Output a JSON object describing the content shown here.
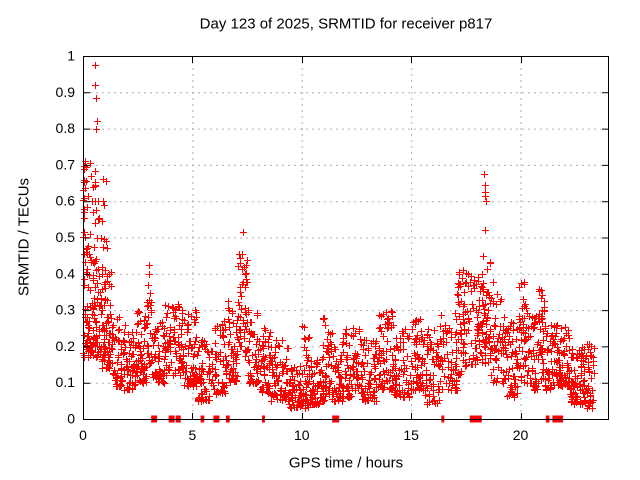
{
  "window": {
    "title": "Day 123 of 2025, SRMTID for receiver p817"
  },
  "chart_data": {
    "type": "scatter",
    "title": "Day 123 of 2025, SRMTID for receiver p817",
    "xlabel": "GPS time / hours",
    "ylabel": "SRMTID / TECUs",
    "xlim": [
      0,
      24
    ],
    "ylim": [
      0,
      1
    ],
    "xticks": [
      0,
      5,
      10,
      15,
      20
    ],
    "yticks": [
      0,
      0.1,
      0.2,
      0.3,
      0.4,
      0.5,
      0.6,
      0.7,
      0.8,
      0.9,
      1
    ],
    "grid": true,
    "grid_style": "dashed-gray",
    "grid_color": "#b0b0b0",
    "legend": "none",
    "marker_color": "#ff0000",
    "border_color": "#000000",
    "series": [
      {
        "name": "srmtid",
        "marker": "plus",
        "comment": "dense scatter envelope read off the plot; bands are [x_start_hr, x_end_hr, y_min, y_max, point_count, bias_exponent]",
        "bands": [
          [
            0.0,
            0.35,
            0.17,
            0.48,
            50,
            1.5
          ],
          [
            0.0,
            0.15,
            0.5,
            0.71,
            10,
            1.0
          ],
          [
            0.35,
            0.8,
            0.17,
            0.45,
            60,
            1.5
          ],
          [
            0.45,
            0.75,
            0.45,
            0.7,
            9,
            1.0
          ],
          [
            0.8,
            1.3,
            0.14,
            0.42,
            70,
            1.5
          ],
          [
            1.3,
            1.8,
            0.09,
            0.28,
            55,
            1.5
          ],
          [
            1.8,
            2.4,
            0.08,
            0.26,
            55,
            1.5
          ],
          [
            2.4,
            2.9,
            0.1,
            0.3,
            55,
            1.5
          ],
          [
            2.9,
            3.12,
            0.15,
            0.42,
            25,
            1.1
          ],
          [
            3.12,
            3.7,
            0.1,
            0.28,
            50,
            1.5
          ],
          [
            3.7,
            4.6,
            0.12,
            0.32,
            85,
            1.5
          ],
          [
            4.6,
            5.2,
            0.09,
            0.3,
            60,
            1.5
          ],
          [
            5.2,
            6.0,
            0.05,
            0.22,
            65,
            1.5
          ],
          [
            6.0,
            6.6,
            0.07,
            0.27,
            55,
            1.5
          ],
          [
            6.6,
            7.05,
            0.1,
            0.33,
            50,
            1.4
          ],
          [
            7.05,
            7.5,
            0.17,
            0.46,
            45,
            1.2
          ],
          [
            7.5,
            8.0,
            0.1,
            0.3,
            50,
            1.5
          ],
          [
            8.0,
            8.6,
            0.07,
            0.25,
            55,
            1.5
          ],
          [
            8.6,
            9.4,
            0.05,
            0.22,
            65,
            1.5
          ],
          [
            9.4,
            9.95,
            0.03,
            0.15,
            50,
            1.5
          ],
          [
            9.95,
            10.35,
            0.03,
            0.26,
            45,
            1.6
          ],
          [
            10.35,
            10.9,
            0.04,
            0.18,
            50,
            1.5
          ],
          [
            10.9,
            11.25,
            0.05,
            0.28,
            40,
            1.4
          ],
          [
            11.25,
            11.95,
            0.05,
            0.24,
            60,
            1.5
          ],
          [
            11.95,
            12.7,
            0.06,
            0.25,
            65,
            1.5
          ],
          [
            12.7,
            13.4,
            0.05,
            0.22,
            60,
            1.5
          ],
          [
            13.4,
            14.2,
            0.08,
            0.3,
            70,
            1.5
          ],
          [
            14.2,
            14.95,
            0.06,
            0.25,
            65,
            1.5
          ],
          [
            14.95,
            15.55,
            0.08,
            0.28,
            55,
            1.5
          ],
          [
            15.55,
            16.3,
            0.04,
            0.25,
            60,
            1.5
          ],
          [
            16.3,
            17.1,
            0.08,
            0.3,
            60,
            1.5
          ],
          [
            17.1,
            17.6,
            0.12,
            0.41,
            55,
            1.2
          ],
          [
            17.6,
            18.25,
            0.15,
            0.4,
            60,
            1.3
          ],
          [
            18.25,
            18.65,
            0.15,
            0.45,
            45,
            1.2
          ],
          [
            18.65,
            19.3,
            0.1,
            0.38,
            55,
            1.4
          ],
          [
            19.3,
            19.9,
            0.06,
            0.27,
            50,
            1.5
          ],
          [
            19.9,
            20.25,
            0.1,
            0.38,
            40,
            1.3
          ],
          [
            20.25,
            20.8,
            0.08,
            0.3,
            50,
            1.5
          ],
          [
            20.8,
            21.1,
            0.1,
            0.36,
            35,
            1.3
          ],
          [
            21.1,
            21.6,
            0.08,
            0.27,
            45,
            1.5
          ],
          [
            21.6,
            22.25,
            0.09,
            0.26,
            70,
            1.6
          ],
          [
            22.25,
            22.95,
            0.04,
            0.2,
            85,
            1.7
          ],
          [
            22.95,
            23.35,
            0.03,
            0.21,
            40,
            1.5
          ]
        ],
        "outliers": [
          [
            0.55,
            0.975
          ],
          [
            0.57,
            0.92
          ],
          [
            0.58,
            0.885
          ],
          [
            0.62,
            0.82
          ],
          [
            0.6,
            0.8
          ],
          [
            0.08,
            0.71
          ],
          [
            0.3,
            0.705
          ],
          [
            0.12,
            0.695
          ],
          [
            0.05,
            0.69
          ],
          [
            0.35,
            0.67
          ],
          [
            0.9,
            0.66
          ],
          [
            0.15,
            0.655
          ],
          [
            1.05,
            0.655
          ],
          [
            0.55,
            0.645
          ],
          [
            0.08,
            0.635
          ],
          [
            0.25,
            0.615
          ],
          [
            0.05,
            0.61
          ],
          [
            0.4,
            0.6
          ],
          [
            0.55,
            0.6
          ],
          [
            0.7,
            0.6
          ],
          [
            0.93,
            0.6
          ],
          [
            0.95,
            0.59
          ],
          [
            0.2,
            0.585
          ],
          [
            0.6,
            0.575
          ],
          [
            0.05,
            0.57
          ],
          [
            0.85,
            0.545
          ],
          [
            0.55,
            0.54
          ],
          [
            0.05,
            0.515
          ],
          [
            0.3,
            0.51
          ],
          [
            0.65,
            0.5
          ],
          [
            0.8,
            0.5
          ],
          [
            0.95,
            0.495
          ],
          [
            1.05,
            0.49
          ],
          [
            0.9,
            0.475
          ],
          [
            1.1,
            0.47
          ],
          [
            0.05,
            0.455
          ],
          [
            0.15,
            0.46
          ],
          [
            0.3,
            0.445
          ],
          [
            0.5,
            0.43
          ],
          [
            0.85,
            0.42
          ],
          [
            1.0,
            0.41
          ],
          [
            1.2,
            0.4
          ],
          [
            3.0,
            0.425
          ],
          [
            7.33,
            0.515
          ],
          [
            7.28,
            0.455
          ],
          [
            15.3,
            0.27
          ],
          [
            18.33,
            0.675
          ],
          [
            18.36,
            0.645
          ],
          [
            18.4,
            0.625
          ],
          [
            18.4,
            0.615
          ],
          [
            18.43,
            0.6
          ],
          [
            18.38,
            0.52
          ],
          [
            20.0,
            0.375
          ],
          [
            20.95,
            0.355
          ]
        ]
      },
      {
        "name": "data-gap-flags",
        "marker": "filled-square",
        "y": 0,
        "comment": "red squares on the x-axis; [x_hr, width_px]",
        "flags": [
          [
            3.25,
            6
          ],
          [
            4.05,
            6
          ],
          [
            4.35,
            5
          ],
          [
            5.42,
            2
          ],
          [
            5.5,
            2
          ],
          [
            6.1,
            6
          ],
          [
            6.58,
            2
          ],
          [
            6.66,
            2
          ],
          [
            8.25,
            3
          ],
          [
            11.55,
            7
          ],
          [
            16.45,
            3
          ],
          [
            17.95,
            12
          ],
          [
            21.2,
            2
          ],
          [
            21.28,
            2
          ],
          [
            21.55,
            4
          ],
          [
            21.72,
            10
          ]
        ]
      }
    ]
  }
}
